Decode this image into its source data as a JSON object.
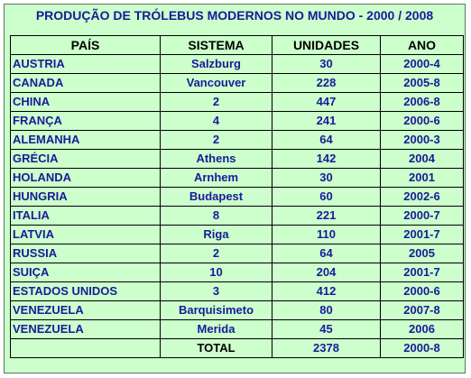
{
  "title": "PRODUÇÃO DE TRÓLEBUS MODERNOS NO MUNDO - 2000 / 2008",
  "headers": {
    "pais": "PAÍS",
    "sistema": "SISTEMA",
    "unidades": "UNIDADES",
    "ano": "ANO"
  },
  "rows": [
    {
      "pais": "AUSTRIA",
      "sistema": "Salzburg",
      "unidades": "30",
      "ano": "2000-4"
    },
    {
      "pais": "CANADA",
      "sistema": "Vancouver",
      "unidades": "228",
      "ano": "2005-8"
    },
    {
      "pais": "CHINA",
      "sistema": "2",
      "unidades": "447",
      "ano": "2006-8"
    },
    {
      "pais": "FRANÇA",
      "sistema": "4",
      "unidades": "241",
      "ano": "2000-6"
    },
    {
      "pais": "ALEMANHA",
      "sistema": "2",
      "unidades": "64",
      "ano": "2000-3"
    },
    {
      "pais": "GRÉCIA",
      "sistema": "Athens",
      "unidades": "142",
      "ano": "2004"
    },
    {
      "pais": "HOLANDA",
      "sistema": "Arnhem",
      "unidades": "30",
      "ano": "2001"
    },
    {
      "pais": "HUNGRIA",
      "sistema": "Budapest",
      "unidades": "60",
      "ano": "2002-6"
    },
    {
      "pais": "ITALIA",
      "sistema": "8",
      "unidades": "221",
      "ano": "2000-7"
    },
    {
      "pais": "LATVIA",
      "sistema": "Riga",
      "unidades": "110",
      "ano": "2001-7"
    },
    {
      "pais": "RUSSIA",
      "sistema": "2",
      "unidades": "64",
      "ano": "2005"
    },
    {
      "pais": "SUIÇA",
      "sistema": "10",
      "unidades": "204",
      "ano": "2001-7"
    },
    {
      "pais": "ESTADOS UNIDOS",
      "sistema": "3",
      "unidades": "412",
      "ano": "2000-6"
    },
    {
      "pais": "VENEZUELA",
      "sistema": "Barquisimeto",
      "unidades": "80",
      "ano": "2007-8"
    },
    {
      "pais": "VENEZUELA",
      "sistema": "Merida",
      "unidades": "45",
      "ano": "2006"
    }
  ],
  "total": {
    "pais": "",
    "sistema": "TOTAL",
    "unidades": "2378",
    "ano": "2000-8"
  },
  "colors": {
    "background": "#ccffcc",
    "text_blue": "#1a1a99",
    "text_black": "#000000",
    "border": "#000000"
  }
}
